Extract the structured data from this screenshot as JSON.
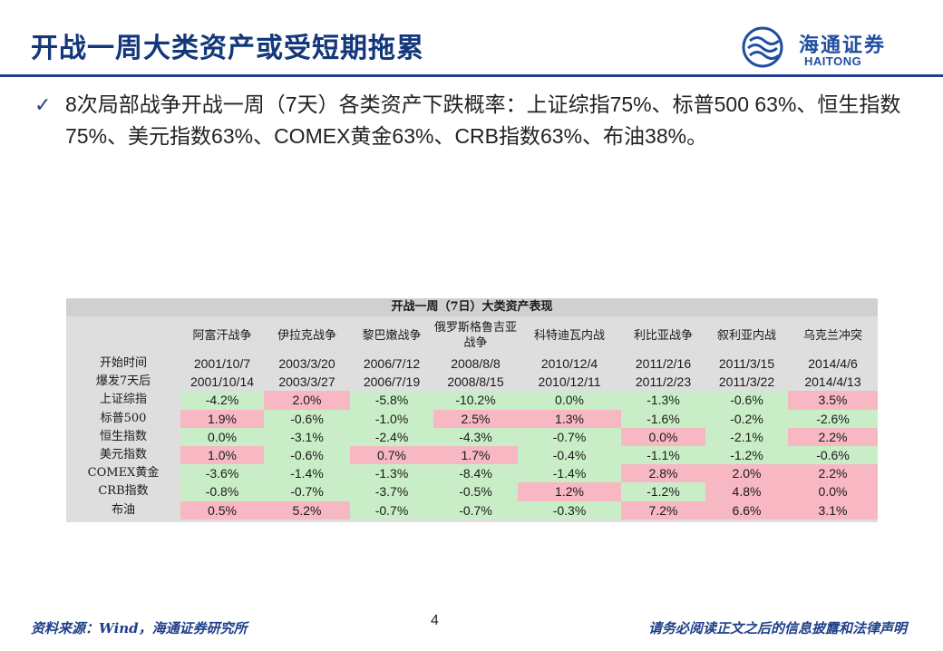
{
  "page": {
    "title": "开战一周大类资产或受短期拖累",
    "bullet": "8次局部战争开战一周（7天）各类资产下跌概率：上证综指75%、标普500 63%、恒生指数75%、美元指数63%、COMEX黄金63%、CRB指数63%、布油38%。",
    "page_number": "4",
    "source": "资料来源：Wind，海通证券研究所",
    "disclaimer": "请务必阅读正文之后的信息披露和法律声明"
  },
  "logo": {
    "cn": "海通证券",
    "en": "HAITONG",
    "color": "#1f4fa0"
  },
  "colors": {
    "title": "#13377a",
    "rule": "#1f3f8a",
    "positive_cell": "#f7b8c3",
    "negative_cell": "#c9eec7",
    "table_bg": "#dedede"
  },
  "table": {
    "caption": "开战一周（7日）大类资产表现",
    "columns": [
      "阿富汗战争",
      "伊拉克战争",
      "黎巴嫩战争",
      "俄罗斯格鲁吉亚战争",
      "科特迪瓦内战",
      "利比亚战争",
      "叙利亚内战",
      "乌克兰冲突"
    ],
    "date_rows": [
      {
        "label": "开始时间",
        "values": [
          "2001/10/7",
          "2003/3/20",
          "2006/7/12",
          "2008/8/8",
          "2010/12/4",
          "2011/2/16",
          "2011/3/15",
          "2014/4/6"
        ]
      },
      {
        "label": "爆发7天后",
        "values": [
          "2001/10/14",
          "2003/3/27",
          "2006/7/19",
          "2008/8/15",
          "2010/12/11",
          "2011/2/23",
          "2011/3/22",
          "2014/4/13"
        ]
      }
    ],
    "asset_rows": [
      {
        "label": "上证综指",
        "values": [
          "-4.2%",
          "2.0%",
          "-5.8%",
          "-10.2%",
          "0.0%",
          "-1.3%",
          "-0.6%",
          "3.5%"
        ],
        "signs": [
          "neg",
          "pos",
          "neg",
          "neg",
          "neg",
          "neg",
          "neg",
          "pos"
        ]
      },
      {
        "label": "标普500",
        "values": [
          "1.9%",
          "-0.6%",
          "-1.0%",
          "2.5%",
          "1.3%",
          "-1.6%",
          "-0.2%",
          "-2.6%"
        ],
        "signs": [
          "pos",
          "neg",
          "neg",
          "pos",
          "pos",
          "neg",
          "neg",
          "neg"
        ]
      },
      {
        "label": "恒生指数",
        "values": [
          "0.0%",
          "-3.1%",
          "-2.4%",
          "-4.3%",
          "-0.7%",
          "0.0%",
          "-2.1%",
          "2.2%"
        ],
        "signs": [
          "neg",
          "neg",
          "neg",
          "neg",
          "neg",
          "pos",
          "neg",
          "pos"
        ]
      },
      {
        "label": "美元指数",
        "values": [
          "1.0%",
          "-0.6%",
          "0.7%",
          "1.7%",
          "-0.4%",
          "-1.1%",
          "-1.2%",
          "-0.6%"
        ],
        "signs": [
          "pos",
          "neg",
          "pos",
          "pos",
          "neg",
          "neg",
          "neg",
          "neg"
        ]
      },
      {
        "label": "COMEX黄金",
        "values": [
          "-3.6%",
          "-1.4%",
          "-1.3%",
          "-8.4%",
          "-1.4%",
          "2.8%",
          "2.0%",
          "2.2%"
        ],
        "signs": [
          "neg",
          "neg",
          "neg",
          "neg",
          "neg",
          "pos",
          "pos",
          "pos"
        ]
      },
      {
        "label": "CRB指数",
        "values": [
          "-0.8%",
          "-0.7%",
          "-3.7%",
          "-0.5%",
          "1.2%",
          "-1.2%",
          "4.8%",
          "0.0%"
        ],
        "signs": [
          "neg",
          "neg",
          "neg",
          "neg",
          "pos",
          "neg",
          "pos",
          "pos"
        ]
      },
      {
        "label": "布油",
        "values": [
          "0.5%",
          "5.2%",
          "-0.7%",
          "-0.7%",
          "-0.3%",
          "7.2%",
          "6.6%",
          "3.1%"
        ],
        "signs": [
          "pos",
          "pos",
          "neg",
          "neg",
          "neg",
          "pos",
          "pos",
          "pos"
        ]
      }
    ]
  }
}
